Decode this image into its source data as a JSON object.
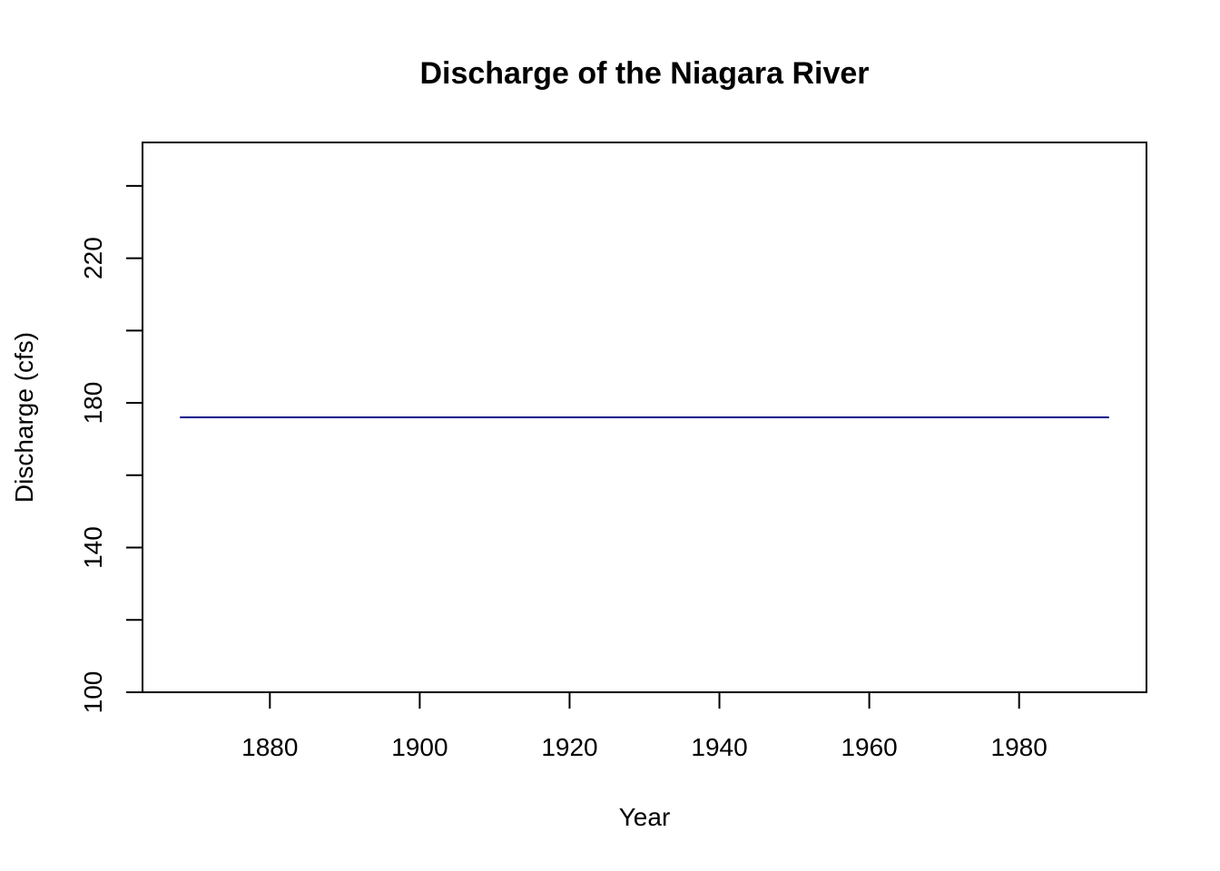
{
  "chart_data": {
    "type": "line",
    "title": "Discharge of the Niagara River",
    "xlabel": "Year",
    "ylabel": "Discharge (cfs)",
    "xlim": [
      1863,
      1997
    ],
    "ylim": [
      100,
      252
    ],
    "xticks": [
      1880,
      1900,
      1920,
      1940,
      1960,
      1980
    ],
    "yticks": [
      100,
      120,
      140,
      160,
      180,
      200,
      220,
      240
    ],
    "ytick_labels": [
      "100",
      "",
      "140",
      "",
      "180",
      "",
      "220",
      ""
    ],
    "grid": false,
    "series": [
      {
        "color": "#00008B",
        "x": [
          1868,
          1992
        ],
        "y": [
          176,
          176
        ]
      }
    ]
  }
}
